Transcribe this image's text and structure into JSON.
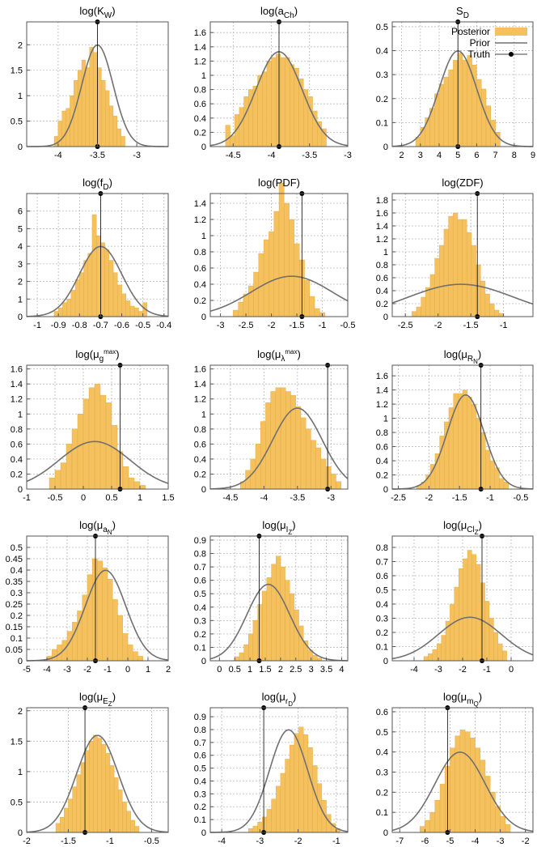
{
  "colors": {
    "posterior": "#f5c15f",
    "posterior_edge": "#e0a838",
    "prior": "#707070",
    "truth": "#000000",
    "grid": "#b8b8b8",
    "frame": "#555555"
  },
  "legend": {
    "posterior": "Posterior",
    "prior": "Prior",
    "truth": "Truth",
    "placement": "top-right of panel 3"
  },
  "chart_data": [
    {
      "type": "histogram",
      "title": {
        "base": "log(K",
        "sub": "W",
        "end": ")"
      },
      "xlim": [
        -4.4,
        -2.6
      ],
      "ylim": [
        0,
        2.45
      ],
      "xticks": [
        -4,
        -3.5,
        -3
      ],
      "yticks": [
        0,
        0.5,
        1,
        1.5,
        2
      ],
      "hist": {
        "x0": -4.05,
        "w": 0.05,
        "v": [
          0.2,
          0.5,
          0.7,
          0.75,
          1.0,
          1.3,
          1.5,
          1.7,
          1.55,
          1.95,
          1.85,
          1.55,
          1.3,
          1.1,
          0.8,
          0.6,
          0.35,
          0.2
        ]
      },
      "prior": {
        "mu": -3.5,
        "sigma": 0.2
      },
      "truth": -3.5
    },
    {
      "type": "histogram",
      "title": {
        "base": "log(a",
        "sub": "Ch",
        "end": ")"
      },
      "xlim": [
        -4.8,
        -3.0
      ],
      "ylim": [
        0,
        1.75
      ],
      "xticks": [
        -4.5,
        -4,
        -3.5,
        -3
      ],
      "yticks": [
        0,
        0.2,
        0.4,
        0.6,
        0.8,
        1,
        1.2,
        1.4,
        1.6
      ],
      "hist": {
        "x0": -4.6,
        "w": 0.06,
        "v": [
          0.3,
          0.15,
          0.45,
          0.55,
          0.7,
          0.8,
          0.85,
          1.0,
          1.05,
          1.2,
          1.25,
          1.3,
          1.25,
          1.25,
          1.15,
          1.1,
          0.95,
          0.8,
          0.7,
          0.5,
          0.35,
          0.25
        ]
      },
      "prior": {
        "mu": -3.9,
        "sigma": 0.3
      },
      "truth": -3.9
    },
    {
      "type": "histogram",
      "title": {
        "base": "S",
        "sub": "D",
        "end": ""
      },
      "xlim": [
        1.5,
        9
      ],
      "ylim": [
        0,
        0.52
      ],
      "xticks": [
        2,
        3,
        4,
        5,
        6,
        7,
        8,
        9
      ],
      "yticks": [
        0,
        0.1,
        0.2,
        0.3,
        0.4,
        0.5
      ],
      "hist": {
        "x0": 2.75,
        "w": 0.25,
        "v": [
          0.04,
          0.08,
          0.12,
          0.16,
          0.22,
          0.26,
          0.29,
          0.32,
          0.36,
          0.39,
          0.36,
          0.38,
          0.34,
          0.28,
          0.24,
          0.17,
          0.11,
          0.06
        ]
      },
      "prior": {
        "mu": 5,
        "sigma": 1
      },
      "truth": 5,
      "legend": true
    },
    {
      "type": "histogram",
      "title": {
        "base": "log(f",
        "sub": "D",
        "end": ")"
      },
      "xlim": [
        -1.05,
        -0.38
      ],
      "ylim": [
        0,
        7.0
      ],
      "xticks": [
        -1,
        -0.9,
        -0.8,
        -0.7,
        -0.6,
        -0.5,
        -0.4
      ],
      "yticks": [
        0,
        1,
        2,
        3,
        4,
        5,
        6
      ],
      "hist": {
        "x0": -0.92,
        "w": 0.02,
        "v": [
          0.3,
          0.5,
          0.8,
          1.0,
          1.5,
          2.1,
          2.5,
          3.2,
          3.6,
          5.8,
          4.6,
          4.2,
          3.8,
          3.2,
          2.5,
          1.8,
          1.3,
          0.9,
          0.6,
          0.5,
          0.3,
          0.8
        ]
      },
      "prior": {
        "mu": -0.7,
        "sigma": 0.1
      },
      "truth": -0.7
    },
    {
      "type": "histogram",
      "title": {
        "base": "log(PDF)",
        "sub": "",
        "end": ""
      },
      "xlim": [
        -3.2,
        -0.5
      ],
      "ylim": [
        0,
        1.52
      ],
      "xticks": [
        -3,
        -2.5,
        -2,
        -1.5,
        -1,
        -0.5
      ],
      "yticks": [
        0,
        0.2,
        0.4,
        0.6,
        0.8,
        1,
        1.2,
        1.4
      ],
      "hist": {
        "x0": -2.75,
        "w": 0.1,
        "v": [
          0.08,
          0.18,
          0.28,
          0.38,
          0.55,
          0.78,
          0.95,
          1.05,
          1.3,
          1.65,
          1.4,
          1.2,
          0.9,
          0.7,
          0.45,
          0.25,
          0.1,
          0.05
        ]
      },
      "prior": {
        "mu": -1.6,
        "sigma": 0.8
      },
      "truth": -1.4
    },
    {
      "type": "histogram",
      "title": {
        "base": "log(ZDF)",
        "sub": "",
        "end": ""
      },
      "xlim": [
        -2.7,
        -0.55
      ],
      "ylim": [
        0,
        1.9
      ],
      "xticks": [
        -2.5,
        -2,
        -1.5,
        -1
      ],
      "yticks": [
        0,
        0.2,
        0.4,
        0.6,
        0.8,
        1,
        1.2,
        1.4,
        1.6,
        1.8
      ],
      "hist": {
        "x0": -2.4,
        "w": 0.07,
        "v": [
          0.08,
          0.15,
          0.3,
          0.45,
          0.65,
          0.9,
          1.1,
          1.35,
          1.55,
          1.6,
          1.5,
          1.5,
          1.3,
          1.1,
          0.8,
          0.55,
          0.35,
          0.2,
          0.1,
          0.05
        ]
      },
      "prior": {
        "mu": -1.65,
        "sigma": 0.8
      },
      "truth": -1.4
    },
    {
      "type": "histogram",
      "title": {
        "base": "log(μ",
        "sub": "g",
        "sup": "max",
        "end": ")"
      },
      "xlim": [
        -1,
        1.5
      ],
      "ylim": [
        0,
        1.65
      ],
      "xticks": [
        -1,
        -0.5,
        0,
        0.5,
        1,
        1.5
      ],
      "yticks": [
        0,
        0.2,
        0.4,
        0.6,
        0.8,
        1,
        1.2,
        1.4,
        1.6
      ],
      "hist": {
        "x0": -0.6,
        "w": 0.1,
        "v": [
          0.15,
          0.25,
          0.35,
          0.6,
          0.8,
          1.0,
          1.2,
          1.35,
          1.4,
          1.25,
          1.15,
          0.85,
          0.5,
          0.3,
          0.15,
          0.1,
          0.05
        ]
      },
      "prior": {
        "mu": 0.2,
        "sigma": 0.63
      },
      "truth": 0.65
    },
    {
      "type": "histogram",
      "title": {
        "base": "log(μ",
        "sub": "λ",
        "sup": "max",
        "end": ")"
      },
      "xlim": [
        -4.8,
        -2.75
      ],
      "ylim": [
        0,
        1.65
      ],
      "xticks": [
        -4.5,
        -4,
        -3.5,
        -3
      ],
      "yticks": [
        0,
        0.2,
        0.4,
        0.6,
        0.8,
        1,
        1.2,
        1.4,
        1.6
      ],
      "hist": {
        "x0": -4.35,
        "w": 0.075,
        "v": [
          0.1,
          0.25,
          0.4,
          0.6,
          0.9,
          1.15,
          1.3,
          1.35,
          1.35,
          1.3,
          1.25,
          1.1,
          0.95,
          0.8,
          0.65,
          0.55,
          0.4,
          0.3,
          0.2,
          0.1
        ]
      },
      "prior": {
        "mu": -3.5,
        "sigma": 0.37
      },
      "truth": -3.05
    },
    {
      "type": "histogram",
      "title": {
        "base": "log(μ",
        "sub": "R",
        "subsub": "N",
        "end": ")"
      },
      "xlim": [
        -2.6,
        -0.3
      ],
      "ylim": [
        0,
        1.75
      ],
      "xticks": [
        -2.5,
        -2,
        -1.5,
        -1,
        -0.5
      ],
      "yticks": [
        0,
        0.2,
        0.4,
        0.6,
        0.8,
        1,
        1.2,
        1.4,
        1.6
      ],
      "hist": {
        "x0": -2.2,
        "w": 0.075,
        "v": [
          0.05,
          0.1,
          0.2,
          0.35,
          0.5,
          0.75,
          0.95,
          1.15,
          1.35,
          1.35,
          1.4,
          1.3,
          1.2,
          1.0,
          0.8,
          0.55,
          0.4,
          0.3,
          0.15,
          0.1
        ]
      },
      "prior": {
        "mu": -1.4,
        "sigma": 0.3
      },
      "truth": -1.15
    },
    {
      "type": "histogram",
      "title": {
        "base": "log(μ",
        "sub": "a",
        "subsub": "N",
        "end": ")"
      },
      "xlim": [
        -5,
        2
      ],
      "ylim": [
        0,
        0.55
      ],
      "xticks": [
        -5,
        -4,
        -3,
        -2,
        -1,
        0,
        1,
        2
      ],
      "yticks": [
        0,
        0.05,
        0.1,
        0.15,
        0.2,
        0.25,
        0.3,
        0.35,
        0.4,
        0.45,
        0.5
      ],
      "hist": {
        "x0": -4.0,
        "w": 0.25,
        "v": [
          0.02,
          0.05,
          0.07,
          0.09,
          0.13,
          0.17,
          0.22,
          0.29,
          0.38,
          0.45,
          0.44,
          0.41,
          0.36,
          0.27,
          0.2,
          0.12,
          0.07,
          0.04,
          0.02
        ]
      },
      "prior": {
        "mu": -1.1,
        "sigma": 1
      },
      "truth": -1.6
    },
    {
      "type": "histogram",
      "title": {
        "base": "log(μ",
        "sub": "I",
        "subsub": "Z",
        "end": ")"
      },
      "xlim": [
        -0.3,
        4.2
      ],
      "ylim": [
        0,
        0.93
      ],
      "xticks": [
        0,
        0.5,
        1,
        1.5,
        2,
        2.5,
        3,
        3.5,
        4
      ],
      "yticks": [
        0,
        0.1,
        0.2,
        0.3,
        0.4,
        0.5,
        0.6,
        0.7,
        0.8,
        0.9
      ],
      "hist": {
        "x0": 0.5,
        "w": 0.15,
        "v": [
          0.03,
          0.06,
          0.12,
          0.2,
          0.3,
          0.42,
          0.52,
          0.62,
          0.72,
          0.78,
          0.7,
          0.6,
          0.5,
          0.38,
          0.26,
          0.15,
          0.08,
          0.04,
          0.02
        ]
      },
      "prior": {
        "mu": 1.6,
        "sigma": 0.7
      },
      "truth": 1.3
    },
    {
      "type": "histogram",
      "title": {
        "base": "log(μ",
        "sub": "Cl",
        "subsub": "Z",
        "end": ")"
      },
      "xlim": [
        -4.9,
        0.9
      ],
      "ylim": [
        0,
        0.88
      ],
      "xticks": [
        -4,
        -3,
        -2,
        -1,
        0
      ],
      "yticks": [
        0,
        0.1,
        0.2,
        0.3,
        0.4,
        0.5,
        0.6,
        0.7,
        0.8
      ],
      "hist": {
        "x0": -3.6,
        "w": 0.18,
        "v": [
          0.03,
          0.05,
          0.08,
          0.12,
          0.18,
          0.28,
          0.4,
          0.52,
          0.65,
          0.72,
          0.78,
          0.75,
          0.68,
          0.55,
          0.42,
          0.3,
          0.2,
          0.12,
          0.07
        ]
      },
      "prior": {
        "mu": -1.7,
        "sigma": 1.3
      },
      "truth": -1.2
    },
    {
      "type": "histogram",
      "title": {
        "base": "log(μ",
        "sub": "E",
        "subsub": "Z",
        "end": ")"
      },
      "xlim": [
        -2,
        -0.3
      ],
      "ylim": [
        0,
        2.05
      ],
      "xticks": [
        -2,
        -1.5,
        -1,
        -0.5
      ],
      "yticks": [
        0,
        0.5,
        1,
        1.5,
        2
      ],
      "hist": {
        "x0": -1.65,
        "w": 0.05,
        "v": [
          0.15,
          0.25,
          0.4,
          0.55,
          0.75,
          0.95,
          1.15,
          1.35,
          1.5,
          1.6,
          1.55,
          1.45,
          1.3,
          1.1,
          0.9,
          0.7,
          0.5,
          0.35,
          0.2,
          0.1
        ]
      },
      "prior": {
        "mu": -1.15,
        "sigma": 0.25
      },
      "truth": -1.3
    },
    {
      "type": "histogram",
      "title": {
        "base": "log(μ",
        "sub": "r",
        "subsub": "D",
        "end": ")"
      },
      "xlim": [
        -4.3,
        -0.7
      ],
      "ylim": [
        0,
        0.97
      ],
      "xticks": [
        -4,
        -3,
        -2,
        -1
      ],
      "yticks": [
        0,
        0.1,
        0.2,
        0.3,
        0.4,
        0.5,
        0.6,
        0.7,
        0.8,
        0.9
      ],
      "hist": {
        "x0": -3.3,
        "w": 0.12,
        "v": [
          0.03,
          0.05,
          0.08,
          0.12,
          0.18,
          0.26,
          0.36,
          0.46,
          0.57,
          0.68,
          0.77,
          0.82,
          0.76,
          0.66,
          0.52,
          0.38,
          0.25,
          0.14,
          0.07,
          0.03
        ]
      },
      "prior": {
        "mu": -2.25,
        "sigma": 0.5
      },
      "truth": -2.9
    },
    {
      "type": "histogram",
      "title": {
        "base": "log(μ",
        "sub": "m",
        "subsub": "Q",
        "end": ")"
      },
      "xlim": [
        -7.3,
        -1.7
      ],
      "ylim": [
        0,
        0.62
      ],
      "xticks": [
        -7,
        -6,
        -5,
        -4,
        -3,
        -2
      ],
      "yticks": [
        0,
        0.1,
        0.2,
        0.3,
        0.4,
        0.5,
        0.6
      ],
      "hist": {
        "x0": -6.2,
        "w": 0.2,
        "v": [
          0.03,
          0.06,
          0.1,
          0.16,
          0.24,
          0.33,
          0.42,
          0.48,
          0.51,
          0.5,
          0.47,
          0.42,
          0.36,
          0.28,
          0.2,
          0.13,
          0.08,
          0.04
        ]
      },
      "prior": {
        "mu": -4.6,
        "sigma": 1
      },
      "truth": -5.1
    }
  ]
}
